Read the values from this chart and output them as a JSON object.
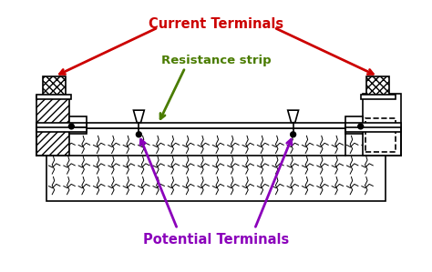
{
  "bg_color": "#ffffff",
  "line_color": "#000000",
  "red_color": "#cc0000",
  "green_color": "#4a7c00",
  "purple_color": "#8b00bb",
  "current_terminals_label": "Current Terminals",
  "resistance_strip_label": "Resistance strip",
  "potential_terminals_label": "Potential Terminals",
  "figsize": [
    4.74,
    2.99
  ],
  "dpi": 100
}
